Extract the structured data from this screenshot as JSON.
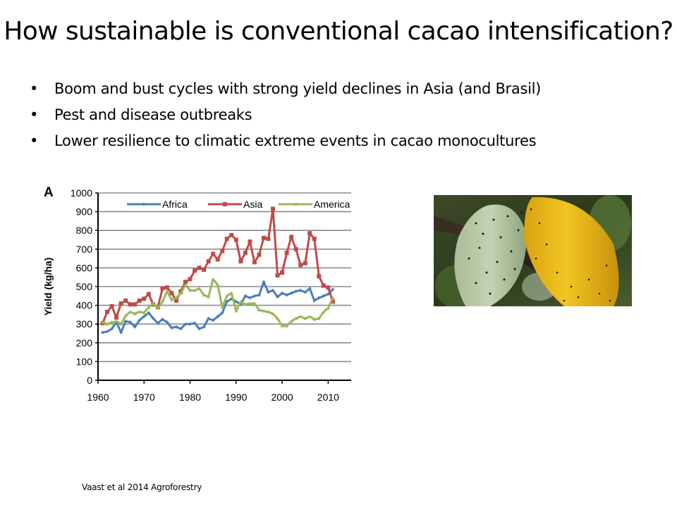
{
  "slide": {
    "title": "How sustainable is conventional cacao intensification?",
    "bullets": [
      {
        "marker": "•",
        "text": "Boom and bust cycles  with strong yield declines in Asia (and Brasil)"
      },
      {
        "marker": "•",
        "text": "Pest and disease outbreaks"
      },
      {
        "marker": "•",
        "text": "Lower resilience to climatic extreme events in cacao monocultures"
      }
    ],
    "citation": "Vaast et al 2014 Agroforestry",
    "photo": {
      "description": "cacao pods (green and yellow) covered with ants"
    }
  },
  "chart_data": {
    "type": "line",
    "panel_label": "A",
    "title": "",
    "xlabel": "",
    "ylabel": "Yield (kg/ha)",
    "xlim": [
      1960,
      2015
    ],
    "ylim": [
      0,
      1000
    ],
    "x_ticks": [
      1960,
      1970,
      1980,
      1990,
      2000,
      2010
    ],
    "y_ticks": [
      0,
      100,
      200,
      300,
      400,
      500,
      600,
      700,
      800,
      900,
      1000
    ],
    "grid": "horizontal",
    "legend_position": "top inside",
    "x": [
      1961,
      1962,
      1963,
      1964,
      1965,
      1966,
      1967,
      1968,
      1969,
      1970,
      1971,
      1972,
      1973,
      1974,
      1975,
      1976,
      1977,
      1978,
      1979,
      1980,
      1981,
      1982,
      1983,
      1984,
      1985,
      1986,
      1987,
      1988,
      1989,
      1990,
      1991,
      1992,
      1993,
      1994,
      1995,
      1996,
      1997,
      1998,
      1999,
      2000,
      2001,
      2002,
      2003,
      2004,
      2005,
      2006,
      2007,
      2008,
      2009,
      2010,
      2011
    ],
    "series": [
      {
        "name": "Africa",
        "color": "#4a7ebb",
        "marker": "diamond",
        "values": [
          255,
          260,
          275,
          310,
          255,
          315,
          310,
          285,
          320,
          340,
          360,
          330,
          305,
          325,
          310,
          280,
          285,
          275,
          300,
          300,
          305,
          275,
          285,
          330,
          320,
          340,
          360,
          420,
          435,
          420,
          405,
          450,
          440,
          450,
          455,
          525,
          470,
          480,
          445,
          465,
          455,
          465,
          475,
          480,
          470,
          490,
          425,
          440,
          450,
          460,
          485
        ]
      },
      {
        "name": "Asia",
        "color": "#be4b48",
        "marker": "square",
        "values": [
          305,
          365,
          395,
          335,
          410,
          425,
          405,
          405,
          425,
          435,
          460,
          405,
          390,
          490,
          495,
          465,
          425,
          475,
          525,
          540,
          585,
          600,
          590,
          635,
          675,
          645,
          690,
          755,
          775,
          750,
          635,
          680,
          740,
          630,
          670,
          760,
          755,
          915,
          560,
          575,
          680,
          765,
          700,
          615,
          625,
          785,
          755,
          555,
          505,
          495,
          420
        ]
      },
      {
        "name": "America",
        "color": "#98b954",
        "marker": "triangle",
        "values": [
          310,
          300,
          310,
          315,
          300,
          345,
          365,
          355,
          365,
          360,
          390,
          410,
          385,
          420,
          475,
          430,
          440,
          465,
          510,
          480,
          480,
          490,
          455,
          445,
          540,
          510,
          390,
          450,
          465,
          370,
          420,
          405,
          410,
          410,
          375,
          370,
          365,
          355,
          330,
          290,
          290,
          315,
          330,
          340,
          330,
          340,
          325,
          330,
          365,
          385,
          440
        ]
      }
    ]
  }
}
